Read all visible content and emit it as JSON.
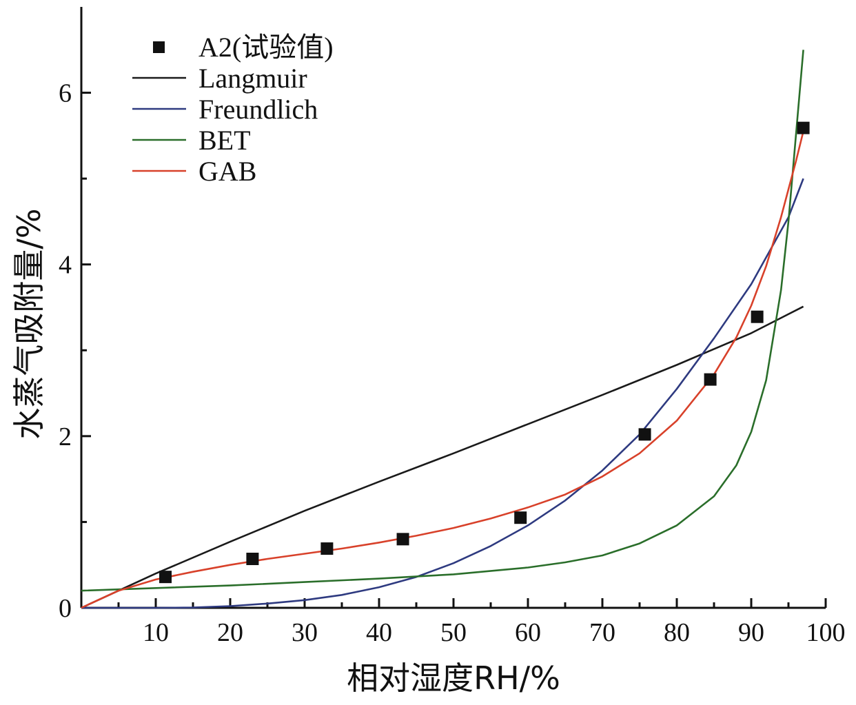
{
  "chart_data": {
    "type": "scatter",
    "title": "",
    "xlabel": "相对湿度RH/%",
    "ylabel": "水蒸气吸附量/%",
    "xlim": [
      0,
      100
    ],
    "ylim": [
      0,
      7
    ],
    "x_ticks": [
      10,
      20,
      30,
      40,
      50,
      60,
      70,
      80,
      90,
      100
    ],
    "x_minor_ticks": [
      5,
      15,
      25,
      35,
      45,
      55,
      65,
      75,
      85,
      95
    ],
    "y_ticks": [
      0,
      2,
      4,
      6
    ],
    "y_tick_labels": [
      "0",
      "2",
      "4",
      "6"
    ],
    "y_minor_ticks": [
      1,
      3,
      5
    ],
    "grid": false,
    "legend_position": "top-left",
    "series": [
      {
        "name": "A2(试验值)",
        "kind": "points",
        "marker": "square",
        "color": "#111111",
        "x": [
          11.3,
          23.0,
          33.0,
          43.2,
          59.0,
          75.7,
          84.5,
          90.8,
          97.0
        ],
        "y": [
          0.36,
          0.57,
          0.69,
          0.8,
          1.05,
          2.02,
          2.66,
          3.39,
          5.59
        ]
      },
      {
        "name": "Langmuir",
        "kind": "line",
        "color": "#1a1a1a",
        "x": [
          0,
          10,
          20,
          30,
          40,
          50,
          60,
          70,
          80,
          90,
          97
        ],
        "y": [
          0.0,
          0.4,
          0.77,
          1.13,
          1.47,
          1.8,
          2.14,
          2.48,
          2.83,
          3.2,
          3.51
        ]
      },
      {
        "name": "Freundlich",
        "kind": "line",
        "color": "#2e3a80",
        "x": [
          0,
          10,
          15,
          20,
          25,
          30,
          35,
          40,
          45,
          50,
          55,
          60,
          65,
          70,
          75,
          80,
          85,
          90,
          95,
          97
        ],
        "y": [
          0,
          0,
          0.003,
          0.02,
          0.05,
          0.09,
          0.15,
          0.24,
          0.36,
          0.52,
          0.72,
          0.96,
          1.25,
          1.6,
          2.02,
          2.55,
          3.14,
          3.77,
          4.55,
          5.0
        ]
      },
      {
        "name": "BET",
        "kind": "line",
        "color": "#2a6e2a",
        "x": [
          0,
          10,
          20,
          30,
          40,
          50,
          60,
          65,
          70,
          75,
          80,
          85,
          88,
          90,
          92,
          94,
          95,
          96,
          96.5,
          97
        ],
        "y": [
          0.2,
          0.23,
          0.26,
          0.3,
          0.34,
          0.39,
          0.47,
          0.53,
          0.61,
          0.75,
          0.96,
          1.3,
          1.66,
          2.05,
          2.65,
          3.7,
          4.5,
          5.5,
          6.0,
          6.5
        ]
      },
      {
        "name": "GAB",
        "kind": "line",
        "color": "#d8412a",
        "x": [
          0,
          5,
          10,
          15,
          20,
          25,
          30,
          35,
          40,
          45,
          50,
          55,
          60,
          65,
          70,
          75,
          80,
          85,
          88,
          90,
          92,
          94,
          96,
          97
        ],
        "y": [
          0,
          0.2,
          0.33,
          0.42,
          0.5,
          0.57,
          0.63,
          0.69,
          0.76,
          0.84,
          0.93,
          1.04,
          1.17,
          1.32,
          1.53,
          1.8,
          2.18,
          2.72,
          3.15,
          3.52,
          3.98,
          4.55,
          5.2,
          5.55
        ]
      }
    ]
  }
}
